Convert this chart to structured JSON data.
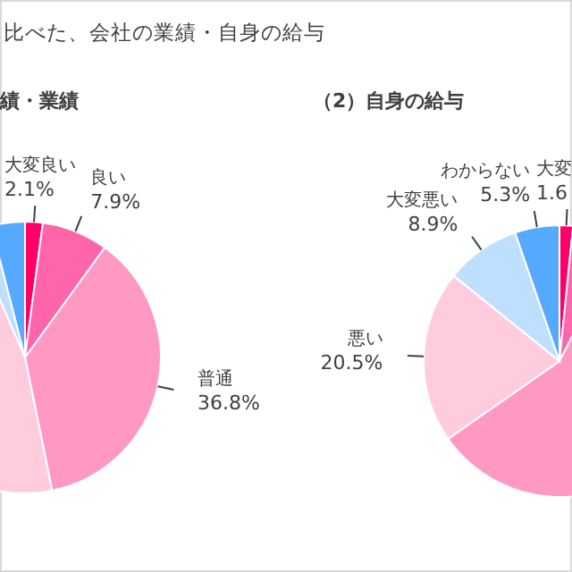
{
  "chart_data": [
    {
      "type": "pie",
      "title": "比べた、会社の業績・自身の給与",
      "subtitle": "績・業績",
      "categories": [
        "大変良い",
        "良い",
        "普通",
        null,
        null,
        null
      ],
      "values": [
        2.1,
        7.9,
        36.8,
        46.7,
        2.5,
        4.0
      ],
      "value_labels": [
        "2.1%",
        "7.9%",
        "36.8%",
        null,
        null,
        null
      ],
      "colors": [
        "#ff0066",
        "#ff66aa",
        "#ff99c4",
        "#ffccdd",
        "#bfdfff",
        "#55aaff"
      ]
    },
    {
      "type": "pie",
      "subtitle": "（2）自身の給与",
      "categories": [
        "大変",
        null,
        null,
        "悪い",
        "大変悪い",
        "わからない"
      ],
      "values": [
        1.6,
        6.0,
        57.7,
        20.5,
        8.9,
        5.3
      ],
      "value_labels": [
        "1.6",
        null,
        null,
        "20.5%",
        "8.9%",
        "5.3%"
      ],
      "colors": [
        "#ff0066",
        "#ff66aa",
        "#ff99c4",
        "#ffccdd",
        "#bfdfff",
        "#55aaff"
      ]
    }
  ]
}
